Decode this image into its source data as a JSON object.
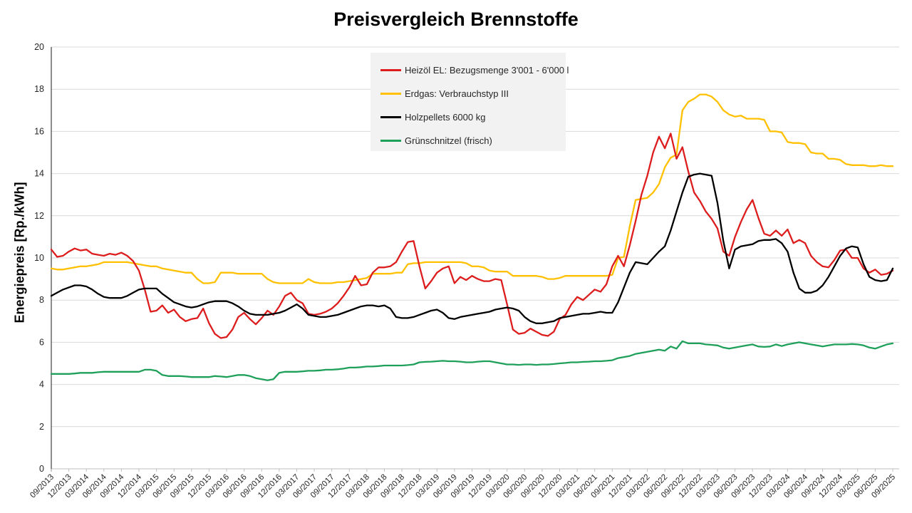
{
  "title": "Preisvergleich Brennstoffe",
  "chart_data": {
    "type": "line",
    "title": "Preisvergleich Brennstoffe",
    "xlabel": "",
    "ylabel": "Energiepreis [Rp./kWh]",
    "ylim": [
      0,
      20
    ],
    "y_tick_step": 2,
    "grid": "horizontal",
    "legend_position": "inside-top-center",
    "x_tick_labels": [
      "09/2013",
      "12/2013",
      "03/2014",
      "06/2014",
      "09/2014",
      "12/2014",
      "03/2015",
      "06/2015",
      "09/2015",
      "12/2015",
      "03/2016",
      "06/2016",
      "09/2016",
      "12/2016",
      "03/2017",
      "06/2017",
      "09/2017",
      "12/2017",
      "03/2018",
      "06/2018",
      "09/2018",
      "12/2018",
      "03/2019",
      "06/2019",
      "09/2019",
      "12/2019",
      "03/2020",
      "06/2020",
      "09/2020",
      "12/2020",
      "03/2021",
      "06/2021",
      "09/2021",
      "12/2021",
      "03/2022",
      "06/2022",
      "09/2022",
      "12/2022",
      "03/2023",
      "06/2023",
      "09/2023",
      "12/2023",
      "03/2024",
      "06/2024",
      "09/2024",
      "12/2024",
      "03/2025",
      "06/2025",
      "09/2025"
    ],
    "points_per_x_tick": 3,
    "x_resolution": "monthly",
    "series": [
      {
        "name": "Heizöl EL: Bezugsmenge 3'001 - 6'000 l",
        "color": "#DD1D1D",
        "values": [
          10.4,
          10.05,
          10.1,
          10.3,
          10.45,
          10.35,
          10.4,
          10.2,
          10.15,
          10.1,
          10.2,
          10.15,
          10.25,
          10.1,
          9.85,
          9.4,
          8.5,
          7.45,
          7.5,
          7.75,
          7.4,
          7.55,
          7.2,
          7.0,
          7.1,
          7.15,
          7.6,
          6.9,
          6.4,
          6.2,
          6.25,
          6.6,
          7.2,
          7.4,
          7.1,
          6.85,
          7.15,
          7.5,
          7.3,
          7.7,
          8.2,
          8.35,
          8.0,
          7.85,
          7.35,
          7.3,
          7.35,
          7.45,
          7.6,
          7.85,
          8.2,
          8.6,
          9.15,
          8.7,
          8.75,
          9.3,
          9.55,
          9.55,
          9.6,
          9.8,
          10.3,
          10.75,
          10.8,
          9.6,
          8.55,
          8.9,
          9.3,
          9.5,
          9.6,
          8.8,
          9.1,
          8.95,
          9.15,
          9.0,
          8.9,
          8.9,
          9.0,
          8.95,
          7.8,
          6.6,
          6.4,
          6.45,
          6.65,
          6.5,
          6.35,
          6.3,
          6.5,
          7.1,
          7.3,
          7.8,
          8.15,
          8.0,
          8.25,
          8.5,
          8.4,
          8.75,
          9.6,
          10.1,
          9.6,
          10.6,
          11.75,
          13.0,
          13.9,
          15.0,
          15.75,
          15.2,
          15.9,
          14.7,
          15.25,
          14.1,
          13.1,
          12.7,
          12.2,
          11.85,
          11.4,
          10.3,
          10.1,
          11.0,
          11.7,
          12.3,
          12.75,
          11.9,
          11.15,
          11.05,
          11.3,
          11.05,
          11.35,
          10.7,
          10.85,
          10.7,
          10.1,
          9.8,
          9.6,
          9.55,
          9.9,
          10.35,
          10.4,
          10.0,
          10.0,
          9.5,
          9.3,
          9.45,
          9.2,
          9.25,
          9.4
        ]
      },
      {
        "name": "Erdgas: Verbrauchstyp III",
        "color": "#FFC000",
        "values": [
          9.5,
          9.45,
          9.45,
          9.5,
          9.55,
          9.6,
          9.6,
          9.65,
          9.7,
          9.8,
          9.8,
          9.8,
          9.8,
          9.8,
          9.75,
          9.7,
          9.65,
          9.6,
          9.6,
          9.5,
          9.45,
          9.4,
          9.35,
          9.3,
          9.3,
          9.0,
          8.8,
          8.8,
          8.85,
          9.3,
          9.3,
          9.3,
          9.25,
          9.25,
          9.25,
          9.25,
          9.25,
          9.0,
          8.85,
          8.8,
          8.8,
          8.8,
          8.8,
          8.8,
          9.0,
          8.85,
          8.8,
          8.8,
          8.8,
          8.85,
          8.85,
          8.9,
          8.95,
          9.0,
          9.05,
          9.25,
          9.25,
          9.25,
          9.25,
          9.3,
          9.3,
          9.7,
          9.75,
          9.75,
          9.8,
          9.8,
          9.8,
          9.8,
          9.8,
          9.8,
          9.8,
          9.75,
          9.6,
          9.6,
          9.55,
          9.4,
          9.35,
          9.35,
          9.35,
          9.15,
          9.15,
          9.15,
          9.15,
          9.15,
          9.1,
          9.0,
          9.0,
          9.05,
          9.15,
          9.15,
          9.15,
          9.15,
          9.15,
          9.15,
          9.15,
          9.15,
          9.2,
          10.0,
          10.05,
          11.5,
          12.75,
          12.8,
          12.85,
          13.1,
          13.5,
          14.3,
          14.75,
          14.9,
          17.0,
          17.4,
          17.55,
          17.75,
          17.75,
          17.65,
          17.4,
          17.0,
          16.8,
          16.7,
          16.75,
          16.6,
          16.6,
          16.6,
          16.55,
          16.0,
          16.0,
          15.95,
          15.5,
          15.45,
          15.45,
          15.4,
          15.0,
          14.95,
          14.95,
          14.7,
          14.7,
          14.65,
          14.45,
          14.4,
          14.4,
          14.4,
          14.35,
          14.35,
          14.4,
          14.35,
          14.35
        ]
      },
      {
        "name": "Holzpellets 6000 kg",
        "color": "#000000",
        "values": [
          8.2,
          8.35,
          8.5,
          8.6,
          8.7,
          8.7,
          8.65,
          8.5,
          8.3,
          8.15,
          8.1,
          8.1,
          8.1,
          8.2,
          8.35,
          8.5,
          8.55,
          8.55,
          8.55,
          8.3,
          8.1,
          7.9,
          7.8,
          7.7,
          7.65,
          7.7,
          7.8,
          7.9,
          7.95,
          7.95,
          7.95,
          7.85,
          7.7,
          7.5,
          7.35,
          7.3,
          7.3,
          7.3,
          7.35,
          7.4,
          7.5,
          7.65,
          7.8,
          7.6,
          7.3,
          7.25,
          7.2,
          7.2,
          7.25,
          7.3,
          7.4,
          7.5,
          7.6,
          7.7,
          7.75,
          7.75,
          7.7,
          7.75,
          7.6,
          7.2,
          7.15,
          7.15,
          7.2,
          7.3,
          7.4,
          7.5,
          7.55,
          7.4,
          7.15,
          7.1,
          7.2,
          7.25,
          7.3,
          7.35,
          7.4,
          7.45,
          7.55,
          7.6,
          7.65,
          7.6,
          7.5,
          7.2,
          7.0,
          6.9,
          6.9,
          6.95,
          7.0,
          7.15,
          7.2,
          7.25,
          7.3,
          7.35,
          7.35,
          7.4,
          7.45,
          7.4,
          7.4,
          7.9,
          8.6,
          9.3,
          9.8,
          9.75,
          9.7,
          10.0,
          10.3,
          10.55,
          11.3,
          12.2,
          13.1,
          13.85,
          13.95,
          14.0,
          13.95,
          13.9,
          12.6,
          10.8,
          9.5,
          10.4,
          10.55,
          10.6,
          10.65,
          10.8,
          10.85,
          10.85,
          10.9,
          10.7,
          10.3,
          9.3,
          8.55,
          8.35,
          8.35,
          8.45,
          8.7,
          9.1,
          9.6,
          10.1,
          10.45,
          10.55,
          10.5,
          9.7,
          9.1,
          8.95,
          8.9,
          8.95,
          9.5
        ]
      },
      {
        "name": "Grünschnitzel (frisch)",
        "color": "#1FA05A",
        "values": [
          4.5,
          4.5,
          4.5,
          4.5,
          4.52,
          4.55,
          4.55,
          4.55,
          4.58,
          4.6,
          4.6,
          4.6,
          4.6,
          4.6,
          4.6,
          4.6,
          4.7,
          4.7,
          4.65,
          4.45,
          4.4,
          4.4,
          4.4,
          4.38,
          4.35,
          4.35,
          4.35,
          4.35,
          4.4,
          4.38,
          4.35,
          4.4,
          4.45,
          4.45,
          4.4,
          4.3,
          4.25,
          4.2,
          4.25,
          4.55,
          4.6,
          4.6,
          4.6,
          4.62,
          4.65,
          4.65,
          4.67,
          4.7,
          4.7,
          4.72,
          4.75,
          4.8,
          4.8,
          4.82,
          4.85,
          4.85,
          4.87,
          4.9,
          4.9,
          4.9,
          4.9,
          4.92,
          4.95,
          5.05,
          5.07,
          5.08,
          5.1,
          5.12,
          5.1,
          5.1,
          5.08,
          5.05,
          5.05,
          5.08,
          5.1,
          5.1,
          5.05,
          5.0,
          4.95,
          4.95,
          4.93,
          4.95,
          4.95,
          4.93,
          4.95,
          4.95,
          4.97,
          5.0,
          5.02,
          5.05,
          5.05,
          5.07,
          5.08,
          5.1,
          5.1,
          5.12,
          5.15,
          5.25,
          5.3,
          5.35,
          5.45,
          5.5,
          5.55,
          5.6,
          5.65,
          5.6,
          5.8,
          5.7,
          6.05,
          5.95,
          5.95,
          5.95,
          5.9,
          5.88,
          5.85,
          5.75,
          5.7,
          5.75,
          5.8,
          5.85,
          5.9,
          5.8,
          5.78,
          5.8,
          5.9,
          5.82,
          5.9,
          5.95,
          6.0,
          5.95,
          5.9,
          5.85,
          5.8,
          5.85,
          5.9,
          5.9,
          5.9,
          5.92,
          5.9,
          5.85,
          5.75,
          5.7,
          5.8,
          5.9,
          5.95
        ]
      }
    ]
  },
  "colors": {
    "gridline": "#D9D9D9",
    "axis_line": "#BFBFBF",
    "y_axis_line": "#404040",
    "tick_text": "#262626",
    "legend_bg": "#F2F2F2"
  }
}
